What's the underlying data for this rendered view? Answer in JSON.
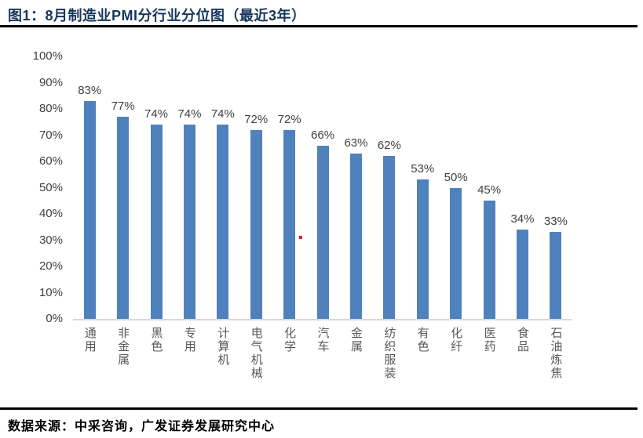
{
  "header": {
    "title": "图1：8月制造业PMI分行业分位图（最近3年）"
  },
  "footer": {
    "source": "数据来源：中采咨询，广发证券发展研究中心"
  },
  "colors": {
    "bar": "#4F81BD",
    "title_text": "#17365D",
    "axis_line": "#D9D9D9",
    "value_label": "#404040",
    "category_label": "#595959",
    "divider": "#000000",
    "stray_dot": "#E02020"
  },
  "chart_data": {
    "type": "bar",
    "title": "8月制造业PMI分行业分位图（最近3年）",
    "categories": [
      "通用",
      "非金属",
      "黑色",
      "专用",
      "计算机",
      "电气机械",
      "化学",
      "汽车",
      "金属",
      "纺织服装",
      "有色",
      "化纤",
      "医药",
      "食品",
      "石油炼焦"
    ],
    "values": [
      83,
      77,
      74,
      74,
      74,
      72,
      72,
      66,
      63,
      62,
      53,
      50,
      45,
      34,
      33
    ],
    "value_labels": [
      "83%",
      "77%",
      "74%",
      "74%",
      "74%",
      "72%",
      "72%",
      "66%",
      "63%",
      "62%",
      "53%",
      "50%",
      "45%",
      "34%",
      "33%"
    ],
    "yticks": [
      "100%",
      "90%",
      "80%",
      "70%",
      "60%",
      "50%",
      "40%",
      "30%",
      "20%",
      "10%",
      "0%"
    ],
    "ylim": [
      0,
      100
    ],
    "xlabel": "",
    "ylabel": "",
    "grid": false,
    "legend": false,
    "data_labels_position": "above bars"
  }
}
